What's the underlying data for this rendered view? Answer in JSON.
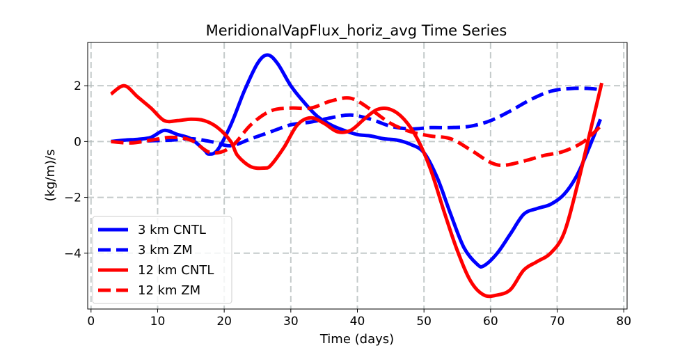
{
  "chart_data": {
    "type": "line",
    "title": "MeridionalVapFlux_horiz_avg Time Series",
    "xlabel": "Time (days)",
    "ylabel": "(kg/m)/s",
    "xlim": [
      -0.5,
      80.5
    ],
    "ylim": [
      -6.0,
      3.55
    ],
    "xticks": [
      0,
      10,
      20,
      30,
      40,
      50,
      60,
      70,
      80
    ],
    "xtick_labels": [
      "0",
      "10",
      "20",
      "30",
      "40",
      "50",
      "60",
      "70",
      "80"
    ],
    "yticks": [
      2,
      0,
      -2,
      -4
    ],
    "ytick_labels": [
      "2",
      "0",
      "−2",
      "−4"
    ],
    "grid": true,
    "legend_position": "lower-left",
    "series": [
      {
        "name": "3 km CNTL",
        "color": "#0000ff",
        "style": "solid",
        "x": [
          3,
          5,
          7,
          9,
          11,
          13,
          15,
          17,
          17.7,
          19,
          21,
          23,
          25,
          26.5,
          28,
          30,
          32,
          34,
          36,
          38,
          40,
          42,
          44,
          46,
          48,
          50,
          52,
          54,
          56,
          58,
          59,
          61,
          63,
          65,
          67,
          69,
          71,
          73,
          75,
          76.5
        ],
        "values": [
          0.0,
          0.05,
          0.08,
          0.15,
          0.4,
          0.25,
          0.1,
          -0.3,
          -0.45,
          -0.3,
          0.6,
          1.8,
          2.8,
          3.1,
          2.8,
          2.0,
          1.4,
          0.9,
          0.6,
          0.4,
          0.25,
          0.2,
          0.1,
          0.05,
          -0.1,
          -0.4,
          -1.3,
          -2.6,
          -3.8,
          -4.4,
          -4.45,
          -4.0,
          -3.3,
          -2.6,
          -2.4,
          -2.25,
          -1.9,
          -1.2,
          -0.1,
          0.8
        ]
      },
      {
        "name": "3 km ZM",
        "color": "#0000ff",
        "style": "dashed",
        "x": [
          3,
          6,
          9,
          12,
          15,
          18,
          21,
          24,
          27,
          30,
          33,
          36,
          39,
          42,
          45,
          48,
          51,
          54,
          57,
          60,
          63,
          66,
          69,
          72,
          75,
          76.5
        ],
        "values": [
          0.0,
          0.0,
          0.03,
          0.05,
          0.1,
          0.0,
          -0.15,
          0.1,
          0.35,
          0.6,
          0.7,
          0.85,
          0.95,
          0.8,
          0.55,
          0.45,
          0.5,
          0.5,
          0.55,
          0.75,
          1.1,
          1.5,
          1.8,
          1.9,
          1.9,
          1.85
        ]
      },
      {
        "name": "12 km CNTL",
        "color": "#ff0000",
        "style": "solid",
        "x": [
          3,
          5,
          7,
          9,
          11,
          13,
          15,
          17,
          19,
          21,
          22,
          24,
          26,
          27,
          29,
          31,
          33,
          35,
          37,
          39,
          41,
          43,
          45,
          47,
          49,
          51,
          53,
          55,
          57,
          59,
          61,
          63,
          65,
          67,
          69,
          71,
          73,
          75,
          76.7
        ],
        "values": [
          1.7,
          2.0,
          1.6,
          1.2,
          0.75,
          0.75,
          0.8,
          0.75,
          0.5,
          0.0,
          -0.5,
          -0.9,
          -0.95,
          -0.85,
          -0.2,
          0.6,
          0.85,
          0.65,
          0.35,
          0.4,
          0.8,
          1.15,
          1.15,
          0.8,
          0.1,
          -1.0,
          -2.5,
          -3.9,
          -5.0,
          -5.5,
          -5.5,
          -5.3,
          -4.6,
          -4.3,
          -4.0,
          -3.3,
          -1.6,
          0.4,
          2.1
        ]
      },
      {
        "name": "12 km ZM",
        "color": "#ff0000",
        "style": "dashed",
        "x": [
          3,
          6,
          9,
          12,
          15,
          18,
          21,
          24,
          27,
          30,
          33,
          36,
          39,
          42,
          45,
          48,
          51,
          54,
          57,
          60,
          62,
          65,
          68,
          71,
          74,
          76.5
        ],
        "values": [
          0.0,
          -0.05,
          0.05,
          0.15,
          0.05,
          -0.4,
          -0.2,
          0.6,
          1.1,
          1.2,
          1.2,
          1.45,
          1.55,
          1.15,
          0.65,
          0.35,
          0.2,
          0.1,
          -0.3,
          -0.75,
          -0.85,
          -0.7,
          -0.5,
          -0.35,
          0.0,
          0.55
        ]
      }
    ]
  }
}
